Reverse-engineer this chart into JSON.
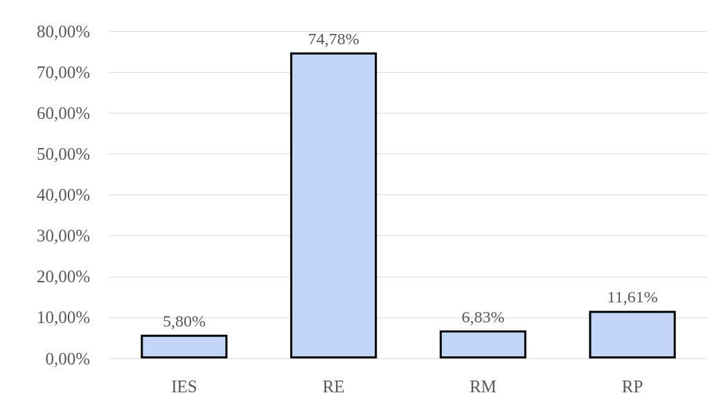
{
  "chart_data": {
    "type": "bar",
    "categories": [
      "IES",
      "RE",
      "RM",
      "RP"
    ],
    "values": [
      5.8,
      74.78,
      6.83,
      11.61
    ],
    "value_labels": [
      "5,80%",
      "74,78%",
      "6,83%",
      "11,61%"
    ],
    "color": "#c2d6f7",
    "ylim": [
      0,
      80
    ],
    "yticks": [
      {
        "value": 0,
        "label": "0,00%"
      },
      {
        "value": 10,
        "label": "10,00%"
      },
      {
        "value": 20,
        "label": "20,00%"
      },
      {
        "value": 30,
        "label": "30,00%"
      },
      {
        "value": 40,
        "label": "40,00%"
      },
      {
        "value": 50,
        "label": "50,00%"
      },
      {
        "value": 60,
        "label": "60,00%"
      },
      {
        "value": 70,
        "label": "70,00%"
      },
      {
        "value": 80,
        "label": "80,00%"
      }
    ],
    "grid": true
  }
}
